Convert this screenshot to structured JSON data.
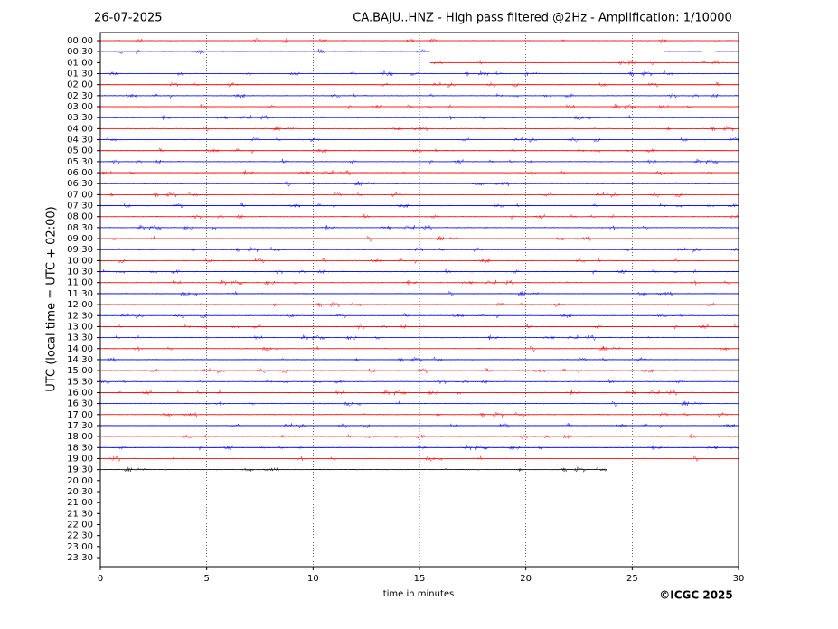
{
  "chart_data": {
    "type": "helicorder",
    "date": "26-07-2025",
    "title": "CA.BAJU..HNZ - High pass filtered @2Hz - Amplification: 1/10000",
    "x_label": "time in minutes",
    "y_label": "UTC (local time = UTC + 02:00)",
    "copyright": "©ICGC 2025",
    "xlim": [
      0,
      30
    ],
    "xticks": [
      0,
      5,
      10,
      15,
      20,
      25,
      30
    ],
    "grid": true,
    "categories": [
      "00:00",
      "00:30",
      "01:00",
      "01:30",
      "02:00",
      "02:30",
      "03:00",
      "03:30",
      "04:00",
      "04:30",
      "05:00",
      "05:30",
      "06:00",
      "06:30",
      "07:00",
      "07:30",
      "08:00",
      "08:30",
      "09:00",
      "09:30",
      "10:00",
      "10:30",
      "11:00",
      "11:30",
      "12:00",
      "12:30",
      "13:00",
      "13:30",
      "14:00",
      "14:30",
      "15:00",
      "15:30",
      "16:00",
      "16:30",
      "17:00",
      "17:30",
      "18:00",
      "18:30",
      "19:00",
      "19:30",
      "20:00",
      "20:30",
      "21:00",
      "21:30",
      "22:00",
      "22:30",
      "23:00",
      "23:30"
    ],
    "traces": [
      {
        "color": "#ff0000",
        "segments": [
          [
            0,
            30
          ]
        ]
      },
      {
        "color": "#0000ff",
        "segments": [
          [
            0,
            15.5
          ],
          [
            26.5,
            28.3
          ],
          [
            28.9,
            30
          ]
        ]
      },
      {
        "color": "#ff0000",
        "segments": [
          [
            15.5,
            30
          ]
        ]
      },
      {
        "color": "#0000ff",
        "segments": [
          [
            0,
            30
          ]
        ]
      },
      {
        "color": "#ff0000",
        "segments": [
          [
            0,
            30
          ]
        ]
      },
      {
        "color": "#0000ff",
        "segments": [
          [
            0,
            30
          ]
        ]
      },
      {
        "color": "#ff0000",
        "segments": [
          [
            0,
            30
          ]
        ]
      },
      {
        "color": "#0000ff",
        "segments": [
          [
            0,
            30
          ]
        ]
      },
      {
        "color": "#ff0000",
        "segments": [
          [
            0,
            30
          ]
        ]
      },
      {
        "color": "#0000ff",
        "segments": [
          [
            0,
            30
          ]
        ]
      },
      {
        "color": "#ff0000",
        "segments": [
          [
            0,
            30
          ]
        ]
      },
      {
        "color": "#0000ff",
        "segments": [
          [
            0,
            30
          ]
        ]
      },
      {
        "color": "#ff0000",
        "segments": [
          [
            0,
            30
          ]
        ]
      },
      {
        "color": "#0000ff",
        "segments": [
          [
            0,
            30
          ]
        ]
      },
      {
        "color": "#ff0000",
        "segments": [
          [
            0,
            30
          ]
        ]
      },
      {
        "color": "#0000ff",
        "segments": [
          [
            0,
            30
          ]
        ]
      },
      {
        "color": "#ff0000",
        "segments": [
          [
            0,
            30
          ]
        ]
      },
      {
        "color": "#0000ff",
        "segments": [
          [
            0,
            30
          ]
        ]
      },
      {
        "color": "#ff0000",
        "segments": [
          [
            0,
            30
          ]
        ]
      },
      {
        "color": "#0000ff",
        "segments": [
          [
            0,
            30
          ]
        ]
      },
      {
        "color": "#ff0000",
        "segments": [
          [
            0,
            30
          ]
        ]
      },
      {
        "color": "#0000ff",
        "segments": [
          [
            0,
            30
          ]
        ]
      },
      {
        "color": "#ff0000",
        "segments": [
          [
            0,
            30
          ]
        ]
      },
      {
        "color": "#0000ff",
        "segments": [
          [
            0,
            30
          ]
        ]
      },
      {
        "color": "#ff0000",
        "segments": [
          [
            0,
            30
          ]
        ]
      },
      {
        "color": "#0000ff",
        "segments": [
          [
            0,
            30
          ]
        ]
      },
      {
        "color": "#ff0000",
        "segments": [
          [
            0,
            30
          ]
        ]
      },
      {
        "color": "#0000ff",
        "segments": [
          [
            0,
            30
          ]
        ]
      },
      {
        "color": "#ff0000",
        "segments": [
          [
            0,
            30
          ]
        ]
      },
      {
        "color": "#0000ff",
        "segments": [
          [
            0,
            30
          ]
        ]
      },
      {
        "color": "#ff0000",
        "segments": [
          [
            0,
            30
          ]
        ]
      },
      {
        "color": "#0000ff",
        "segments": [
          [
            0,
            30
          ]
        ]
      },
      {
        "color": "#ff0000",
        "segments": [
          [
            0,
            30
          ]
        ]
      },
      {
        "color": "#0000ff",
        "segments": [
          [
            0,
            30
          ]
        ]
      },
      {
        "color": "#ff0000",
        "segments": [
          [
            0,
            30
          ]
        ]
      },
      {
        "color": "#0000ff",
        "segments": [
          [
            0,
            30
          ]
        ]
      },
      {
        "color": "#ff0000",
        "segments": [
          [
            0,
            30
          ]
        ]
      },
      {
        "color": "#0000ff",
        "segments": [
          [
            0,
            30
          ]
        ]
      },
      {
        "color": "#ff0000",
        "segments": [
          [
            0,
            30
          ]
        ]
      },
      {
        "color": "#000000",
        "segments": [
          [
            0,
            23.8
          ]
        ]
      }
    ]
  }
}
